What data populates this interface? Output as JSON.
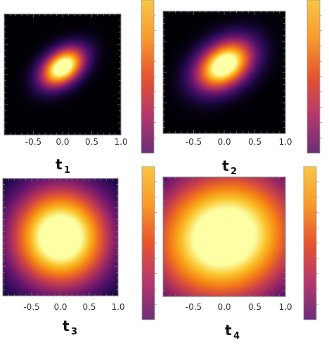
{
  "chart_data": [
    {
      "type": "heatmap",
      "label": "t",
      "label_sub": "1",
      "x_ticks": [
        "-0.5",
        "0.0",
        "0.5",
        "1.0"
      ],
      "xlim": [
        -1,
        1
      ],
      "blob": {
        "cx": 0.0,
        "cy": 0.12,
        "rx": 0.62,
        "ry": 0.4,
        "angle_deg": -35,
        "sharpness": 2.6
      },
      "colorbar": {
        "colormap": "inferno-like",
        "colors": [
          "#6b2f78",
          "#b5386d",
          "#e7542f",
          "#f79a2c",
          "#f9c545"
        ]
      }
    },
    {
      "type": "heatmap",
      "label": "t",
      "label_sub": "2",
      "x_ticks": [
        "-0.5",
        "0.0",
        "0.5",
        "1.0"
      ],
      "xlim": [
        -1,
        1
      ],
      "blob": {
        "cx": 0.0,
        "cy": 0.12,
        "rx": 0.7,
        "ry": 0.48,
        "angle_deg": -35,
        "sharpness": 2.2
      },
      "colorbar": {
        "colormap": "inferno-like",
        "colors": [
          "#6b2f78",
          "#b5386d",
          "#e7542f",
          "#f79a2c",
          "#f9c545"
        ]
      }
    },
    {
      "type": "heatmap",
      "label": "t",
      "label_sub": "3",
      "x_ticks": [
        "-0.5",
        "0.0",
        "0.5",
        "1.0"
      ],
      "xlim": [
        -1,
        1
      ],
      "blob": {
        "cx": 0.0,
        "cy": 0.0,
        "rx": 1.15,
        "ry": 1.15,
        "angle_deg": 0,
        "sharpness": 1.9
      },
      "colorbar": {
        "colormap": "inferno-like",
        "colors": [
          "#6b2f78",
          "#b5386d",
          "#e7542f",
          "#f79a2c",
          "#f9c545"
        ]
      }
    },
    {
      "type": "heatmap",
      "label": "t",
      "label_sub": "4",
      "x_ticks": [
        "-0.5",
        "0.0",
        "0.5",
        "1.0"
      ],
      "xlim": [
        -1,
        1
      ],
      "blob": {
        "cx": 0.0,
        "cy": 0.0,
        "rx": 1.55,
        "ry": 1.4,
        "angle_deg": -25,
        "sharpness": 1.7
      },
      "colorbar": {
        "colormap": "inferno-like",
        "colors": [
          "#6b2f78",
          "#b5386d",
          "#e7542f",
          "#f79a2c",
          "#f9c545"
        ]
      }
    }
  ]
}
